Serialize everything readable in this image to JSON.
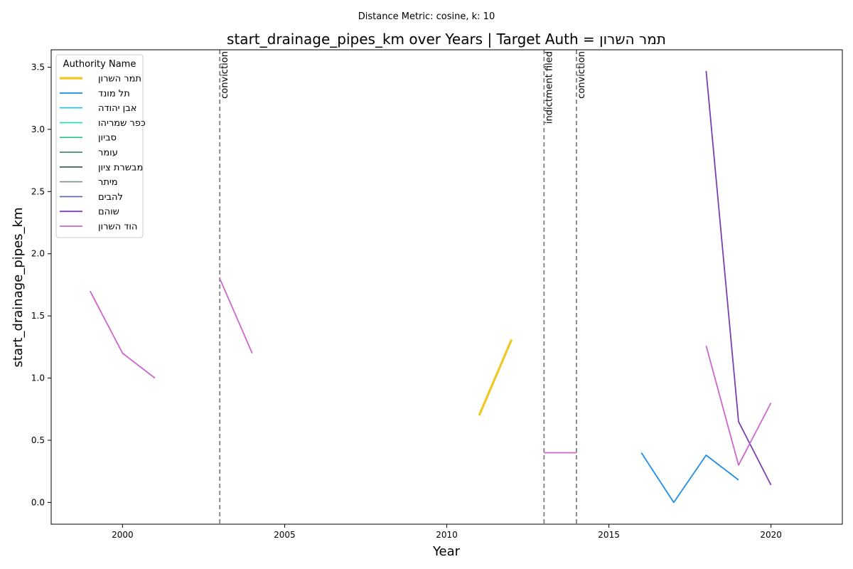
{
  "chart_data": {
    "type": "line",
    "suptitle": "Distance Metric: cosine, k: 10",
    "title": "start_drainage_pipes_km over Years | Target Auth = תמר השרון",
    "xlabel": "Year",
    "ylabel": "start_drainage_pipes_km",
    "xlim": [
      1997.8,
      2022.2
    ],
    "ylim": [
      -0.175,
      3.64
    ],
    "xticks": [
      2000,
      2005,
      2010,
      2015,
      2020
    ],
    "yticks": [
      0.0,
      0.5,
      1.0,
      1.5,
      2.0,
      2.5,
      3.0,
      3.5
    ],
    "legend": {
      "title": "Authority Name",
      "location": "upper-left"
    },
    "series": [
      {
        "name": "תמר השרון",
        "color": "#f1c823",
        "width": 3.2,
        "segments": [
          [
            [
              2011,
              0.7
            ],
            [
              2012,
              1.31
            ]
          ]
        ]
      },
      {
        "name": "תל מונד",
        "color": "#1f8ee6",
        "width": 1.8,
        "segments": [
          [
            [
              2016,
              0.4
            ],
            [
              2017,
              0.0
            ],
            [
              2018,
              0.38
            ],
            [
              2019,
              0.18
            ]
          ]
        ]
      },
      {
        "name": "אבן יהודה",
        "color": "#1ec0e6",
        "width": 1.6,
        "segments": []
      },
      {
        "name": "כפר שמריהו",
        "color": "#1be0c0",
        "width": 1.6,
        "segments": []
      },
      {
        "name": "סביון",
        "color": "#2ec28a",
        "width": 1.6,
        "segments": []
      },
      {
        "name": "עומר",
        "color": "#2a7a55",
        "width": 1.6,
        "segments": []
      },
      {
        "name": "מבשרת ציון",
        "color": "#2e5745",
        "width": 1.6,
        "segments": []
      },
      {
        "name": "מיתר",
        "color": "#7d8c86",
        "width": 1.6,
        "segments": []
      },
      {
        "name": "להבים",
        "color": "#5a5fb2",
        "width": 1.6,
        "segments": []
      },
      {
        "name": "שוהם",
        "color": "#7b3fb2",
        "width": 1.8,
        "segments": [
          [
            [
              2018,
              3.47
            ],
            [
              2019,
              0.65
            ],
            [
              2020,
              0.14
            ]
          ]
        ]
      },
      {
        "name": "הוד השרון",
        "color": "#cc66cc",
        "width": 1.8,
        "segments": [
          [
            [
              1999,
              1.7
            ],
            [
              2000,
              1.2
            ],
            [
              2001,
              1.0
            ]
          ],
          [
            [
              2003,
              1.8
            ],
            [
              2004,
              1.2
            ]
          ],
          [
            [
              2013,
              0.4
            ],
            [
              2014,
              0.4
            ]
          ],
          [
            [
              2018,
              1.26
            ],
            [
              2019,
              0.3
            ],
            [
              2020,
              0.8
            ]
          ]
        ]
      }
    ],
    "annotations": [
      {
        "x": 2003,
        "label": "conviction"
      },
      {
        "x": 2013,
        "label": "indictment filed"
      },
      {
        "x": 2014,
        "label": "conviction"
      }
    ]
  }
}
